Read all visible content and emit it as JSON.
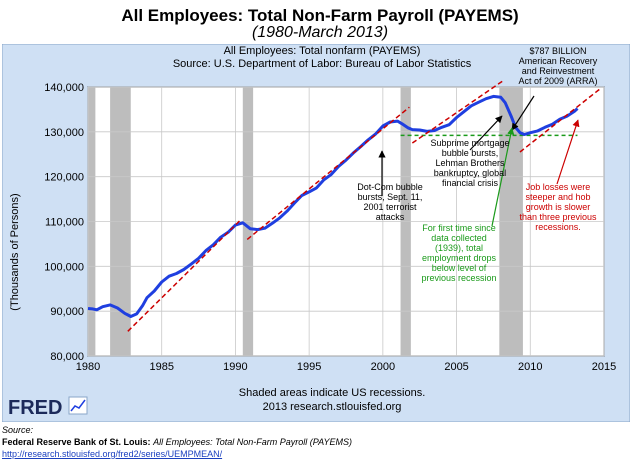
{
  "header": {
    "title": "All Employees: Total Non-Farm Payroll (PAYEMS)",
    "subtitle": "(1980-March 2013)"
  },
  "chart_data": {
    "type": "line",
    "title": "All Employees: Total nonfarm (PAYEMS)",
    "subtitle": "Source: U.S. Department of Labor: Bureau of Labor Statistics",
    "ylabel": "(Thousands of Persons)",
    "xlabel": "",
    "xlim": [
      1980,
      2015
    ],
    "ylim": [
      80000,
      140000
    ],
    "x_ticks": [
      1980,
      1985,
      1990,
      1995,
      2000,
      2005,
      2010,
      2015
    ],
    "y_ticks": [
      80000,
      90000,
      100000,
      110000,
      120000,
      130000,
      140000
    ],
    "x_tick_labels": [
      "1980",
      "1985",
      "1990",
      "1995",
      "2000",
      "2005",
      "2010",
      "2015"
    ],
    "y_tick_labels": [
      "80,000",
      "90,000",
      "100,000",
      "110,000",
      "120,000",
      "130,000",
      "140,000"
    ],
    "grid": true,
    "colors": {
      "series": "#1f3fe0",
      "trend": "#cc0000",
      "threshold": "#1a9a1a",
      "recession": "#bdbdbd",
      "background": "#cfe0f4",
      "plot": "#ffffff"
    },
    "recessions": [
      [
        1980.0,
        1980.5
      ],
      [
        1981.5,
        1982.9
      ],
      [
        1990.5,
        1991.2
      ],
      [
        2001.2,
        2001.9
      ],
      [
        2007.9,
        2009.5
      ]
    ],
    "series": [
      {
        "x": [
          1980.0,
          1980.3,
          1980.6,
          1981.0,
          1981.5,
          1982.0,
          1982.5,
          1982.9,
          1983.3,
          1983.7,
          1984.0,
          1984.5,
          1985.0,
          1985.5,
          1986.0,
          1986.5,
          1987.0,
          1987.5,
          1988.0,
          1988.5,
          1989.0,
          1989.5,
          1990.0,
          1990.5,
          1991.0,
          1991.5,
          1992.0,
          1992.5,
          1993.0,
          1993.5,
          1994.0,
          1994.5,
          1995.0,
          1995.5,
          1996.0,
          1996.5,
          1997.0,
          1997.5,
          1998.0,
          1998.5,
          1999.0,
          1999.5,
          2000.0,
          2000.5,
          2001.0,
          2001.3,
          2001.7,
          2002.0,
          2002.5,
          2003.0,
          2003.5,
          2004.0,
          2004.5,
          2005.0,
          2005.5,
          2006.0,
          2006.5,
          2007.0,
          2007.5,
          2008.0,
          2008.3,
          2008.7,
          2009.0,
          2009.3,
          2009.6,
          2010.0,
          2010.5,
          2011.0,
          2011.5,
          2012.0,
          2012.5,
          2013.0,
          2013.2
        ],
        "values": [
          90600,
          90500,
          90300,
          91000,
          91400,
          90700,
          89500,
          88800,
          89400,
          91200,
          93000,
          94500,
          96500,
          97800,
          98400,
          99300,
          100500,
          101800,
          103500,
          104800,
          106500,
          107600,
          109200,
          109700,
          108400,
          108200,
          108500,
          109600,
          110800,
          112300,
          114100,
          115800,
          116600,
          117500,
          119300,
          120500,
          122300,
          123700,
          125300,
          126700,
          128200,
          129500,
          131300,
          132200,
          132400,
          131800,
          130900,
          130500,
          130400,
          130100,
          130300,
          131000,
          131600,
          133200,
          134500,
          135800,
          136600,
          137400,
          137900,
          137700,
          136500,
          133500,
          131000,
          129800,
          129400,
          129800,
          130200,
          131000,
          131700,
          132800,
          133500,
          134600,
          135200
        ]
      }
    ],
    "trend_lines": [
      {
        "x": [
          1982.7,
          1990.3
        ],
        "values": [
          85500,
          110200
        ]
      },
      {
        "x": [
          1990.8,
          2001.8
        ],
        "values": [
          106000,
          135500
        ]
      },
      {
        "x": [
          2002.0,
          2008.2
        ],
        "values": [
          127500,
          141500
        ]
      },
      {
        "x": [
          2009.3,
          2014.7
        ],
        "values": [
          125500,
          139500
        ]
      }
    ],
    "threshold_line": {
      "x": [
        2001.2,
        2013.2
      ],
      "value": 129200
    },
    "annotations": {
      "dotcom": [
        "Dot-Com bubble",
        "bursts, Sept. 11,",
        "2001 terrorist",
        "attacks"
      ],
      "arra": [
        "$787 BILLION",
        "American Recovery",
        "and Reinvestment",
        "Act of 2009 (ARRA)"
      ],
      "subprime": [
        "Subprime mortgage",
        "bubble bursts,",
        "Lehman Brothers",
        "bankruptcy, global",
        "financial crisis"
      ],
      "first_time": [
        "For first time since",
        "data collected",
        "(1939), total",
        "employment drops",
        "below level of",
        "previous recession"
      ],
      "job_losses": [
        "Job losses were",
        "steeper and hob",
        "growth is slower",
        "than three previous",
        "recessions."
      ]
    },
    "footer": {
      "shaded_note": "Shaded areas indicate US recessions.",
      "site": "2013 research.stlouisfed.org",
      "logo_text": "FRED"
    }
  },
  "source": {
    "label": "Source:",
    "org": "Federal Reserve Bank of St. Louis:",
    "series": "All Employees: Total Non-Farm Payroll (PAYEMS)",
    "url": "http://research.stlouisfed.org/fred2/series/UEMPMEAN/"
  }
}
